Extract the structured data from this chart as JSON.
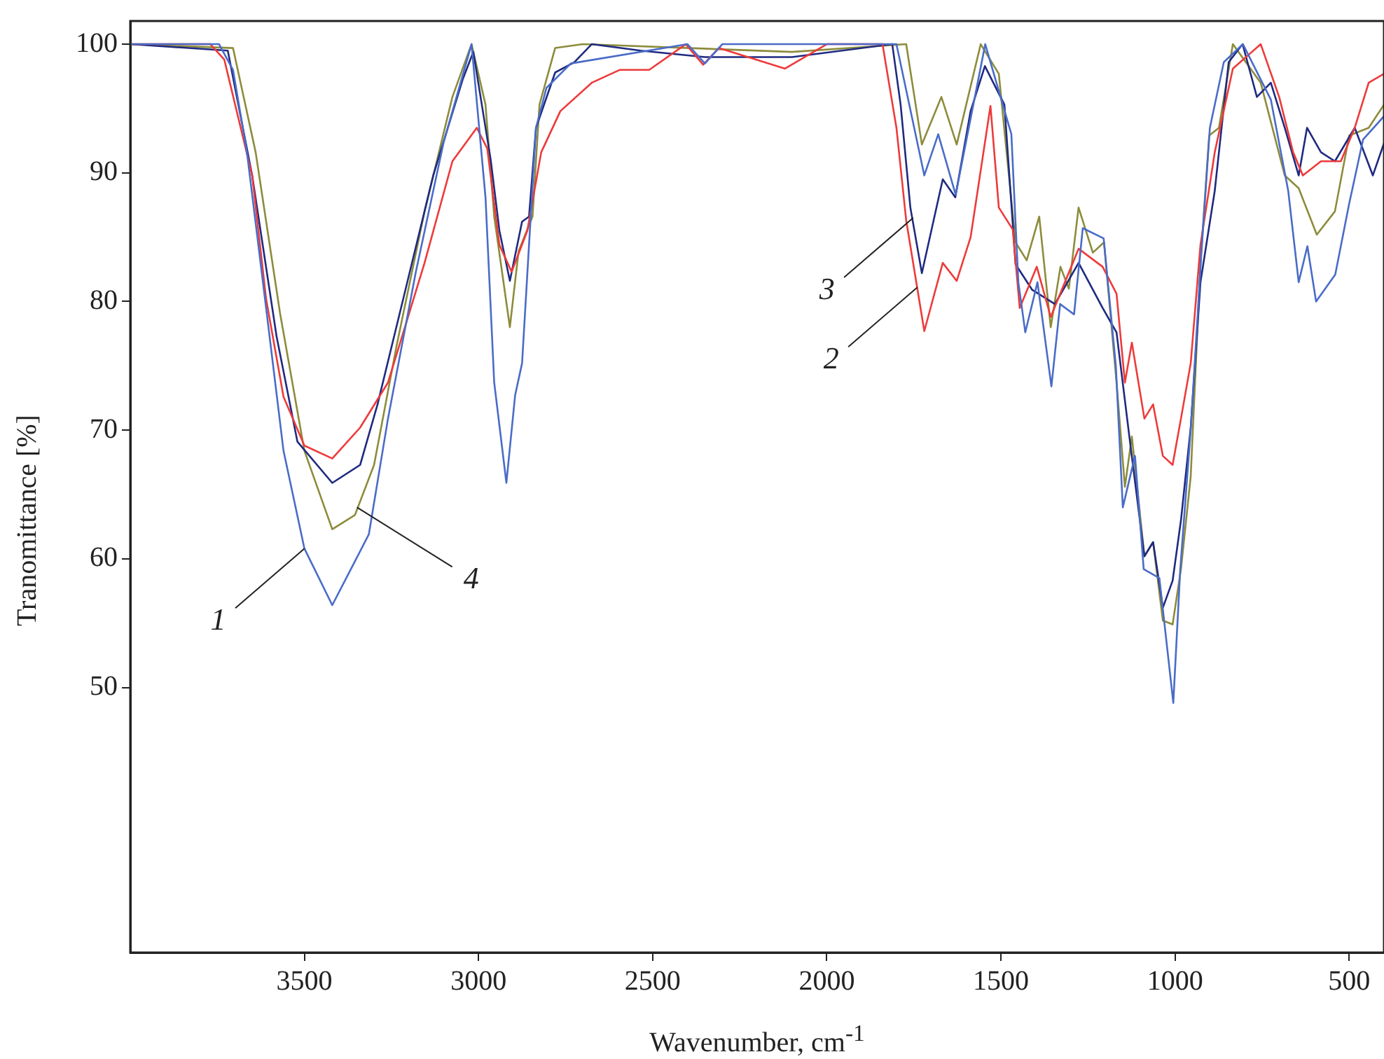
{
  "chart_data": {
    "type": "line",
    "xlabel": "Wavenumber, cm$^{-1}$",
    "ylabel": "Tranomittance [%]",
    "xlim": [
      4000,
      400
    ],
    "xticks": [
      3500,
      3000,
      2500,
      2000,
      1500,
      1000,
      500
    ],
    "ylim": [
      29.4,
      101.8
    ],
    "yticks": [
      50,
      60,
      70,
      80,
      90,
      100
    ],
    "grid": false,
    "legend": false,
    "marker": "none",
    "line_style": "solid",
    "series": [
      {
        "color": "#4a6cc8",
        "x": [
          4000,
          3745,
          3705,
          3665,
          3610,
          3560,
          3500,
          3420,
          3315,
          3260,
          3180,
          3100,
          3020,
          2980,
          2955,
          2920,
          2895,
          2875,
          2855,
          2835,
          2805,
          2735,
          2400,
          2350,
          2300,
          1800,
          1720,
          1680,
          1630,
          1545,
          1470,
          1450,
          1430,
          1395,
          1355,
          1330,
          1290,
          1265,
          1205,
          1170,
          1150,
          1115,
          1090,
          1045,
          1005,
          985,
          955,
          925,
          900,
          860,
          805,
          725,
          675,
          645,
          620,
          595,
          540,
          500,
          460,
          400
        ],
        "values": [
          100,
          100,
          98,
          91.6,
          79.5,
          68.4,
          60.8,
          56.4,
          61.9,
          70.9,
          82.3,
          92.4,
          100,
          88.1,
          73.7,
          65.9,
          72.7,
          75.2,
          84.4,
          93.5,
          96.6,
          98.5,
          100,
          98.5,
          100,
          100,
          89.8,
          93,
          88.3,
          100,
          93,
          81.5,
          77.6,
          81.5,
          73.4,
          79.8,
          79,
          85.7,
          84.9,
          75,
          64,
          68,
          59.2,
          58.5,
          48.8,
          59.2,
          70,
          83.5,
          93.5,
          98.6,
          100,
          95.7,
          88.6,
          81.5,
          84.3,
          80,
          82.1,
          87.6,
          92.6,
          94.4
        ]
      },
      {
        "color": "#ee3a3a",
        "x": [
          4000,
          3770,
          3730,
          3650,
          3610,
          3560,
          3500,
          3420,
          3340,
          3260,
          3155,
          3075,
          3005,
          2975,
          2940,
          2905,
          2860,
          2820,
          2765,
          2675,
          2595,
          2510,
          2405,
          2355,
          2310,
          2120,
          2000,
          1840,
          1800,
          1772,
          1720,
          1667,
          1627,
          1587,
          1530,
          1506,
          1466,
          1446,
          1397,
          1357,
          1277,
          1208,
          1168,
          1144,
          1124,
          1088,
          1063,
          1035,
          1007,
          983,
          955,
          927,
          886,
          834,
          754,
          701,
          661,
          633,
          581,
          524,
          484,
          444,
          400
        ],
        "values": [
          100,
          100,
          98.8,
          89.8,
          80.2,
          72.6,
          68.8,
          67.8,
          70.2,
          73.7,
          83,
          90.9,
          93.5,
          91.9,
          84.4,
          82.3,
          85.5,
          91.6,
          94.8,
          97,
          98,
          98,
          100,
          98.4,
          99.7,
          98.1,
          100,
          100,
          93.5,
          86.3,
          77.7,
          83,
          81.6,
          85,
          95.2,
          87.3,
          85.6,
          79.5,
          82.7,
          78.8,
          84.1,
          82.7,
          80.6,
          73.7,
          76.8,
          70.9,
          72,
          68,
          67.3,
          70.9,
          75.2,
          84.4,
          91.6,
          98.1,
          100,
          95.9,
          91.6,
          89.8,
          90.9,
          90.9,
          93.5,
          97,
          97.7
        ]
      },
      {
        "color": "#1f2a80",
        "x": [
          4000,
          3720,
          3650,
          3580,
          3520,
          3420,
          3340,
          3290,
          3210,
          3130,
          3045,
          3015,
          2965,
          2940,
          2910,
          2875,
          2855,
          2835,
          2780,
          2725,
          2675,
          2535,
          2350,
          2100,
          1812,
          1788,
          1760,
          1727,
          1667,
          1631,
          1587,
          1546,
          1490,
          1458,
          1410,
          1345,
          1277,
          1208,
          1168,
          1128,
          1088,
          1063,
          1035,
          1007,
          983,
          955,
          927,
          886,
          846,
          806,
          765,
          725,
          685,
          645,
          621,
          581,
          541,
          484,
          432,
          400
        ],
        "values": [
          100,
          99.5,
          89.8,
          77.3,
          69.1,
          65.9,
          67.3,
          72,
          80.9,
          89.8,
          97.3,
          99.4,
          91,
          85.5,
          81.6,
          86.2,
          86.6,
          93.5,
          97.8,
          98.6,
          100,
          99.5,
          99,
          99,
          100,
          95.3,
          87.3,
          82.2,
          89.5,
          88.1,
          94.8,
          98.3,
          95.3,
          82.9,
          80.9,
          79.8,
          83,
          79.5,
          77.6,
          68.8,
          60.2,
          61.3,
          56.2,
          58.3,
          63,
          70.2,
          81.5,
          88.6,
          98.6,
          100,
          95.9,
          97,
          93.5,
          89.8,
          93.5,
          91.6,
          90.9,
          93.5,
          89.8,
          92.3
        ]
      },
      {
        "color": "#8c8c3c",
        "x": [
          4000,
          3705,
          3640,
          3570,
          3500,
          3420,
          3355,
          3300,
          3235,
          3155,
          3075,
          3020,
          2980,
          2955,
          2910,
          2885,
          2845,
          2825,
          2780,
          2700,
          2100,
          1772,
          1727,
          1671,
          1627,
          1558,
          1506,
          1458,
          1426,
          1390,
          1357,
          1329,
          1305,
          1277,
          1236,
          1204,
          1168,
          1144,
          1124,
          1088,
          1063,
          1035,
          1007,
          983,
          955,
          927,
          902,
          874,
          834,
          754,
          685,
          645,
          593,
          541,
          500,
          444,
          400
        ],
        "values": [
          100,
          99.7,
          91.6,
          79.1,
          68.4,
          62.3,
          63.4,
          67.3,
          76.6,
          87,
          95.9,
          100,
          95.3,
          86.6,
          78,
          83.9,
          86.6,
          95.3,
          99.7,
          100,
          99.4,
          100,
          92.2,
          95.9,
          92.2,
          100,
          97.7,
          84.6,
          83.2,
          86.6,
          78,
          82.7,
          81,
          87.3,
          83.8,
          84.6,
          73.7,
          65.6,
          69.5,
          60.2,
          61.3,
          55.2,
          54.9,
          59.2,
          66.4,
          83,
          92.9,
          93.5,
          100,
          97,
          89.8,
          88.8,
          85.2,
          87,
          92.9,
          93.5,
          95.3
        ]
      }
    ],
    "annotations": [
      {
        "text": "1",
        "x": 3500,
        "y": 60.8
      },
      {
        "text": "4",
        "x": 3349,
        "y": 64
      },
      {
        "text": "3",
        "x": 1752,
        "y": 86.5
      },
      {
        "text": "2",
        "x": 1740,
        "y": 81.1
      }
    ]
  }
}
